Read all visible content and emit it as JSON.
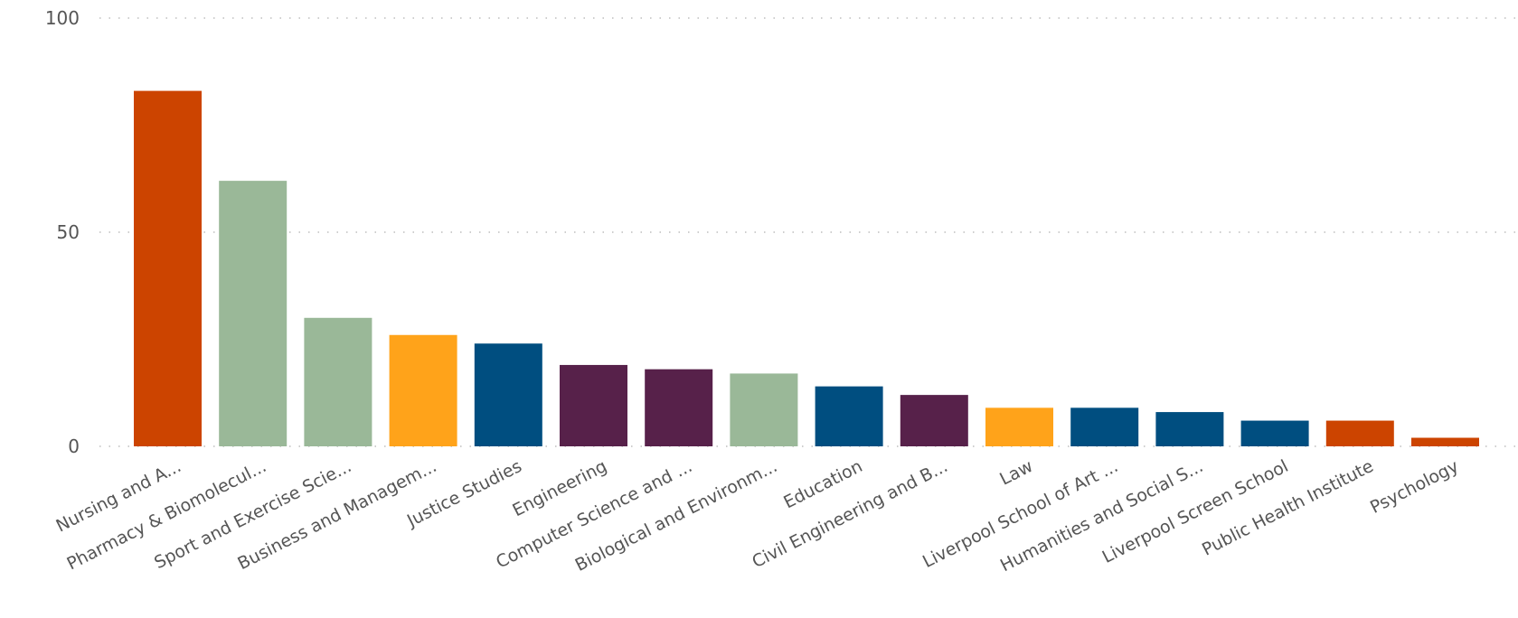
{
  "chart_data": {
    "type": "bar",
    "categories": [
      "Nursing and A...",
      "Pharmacy & Biomolecul...",
      "Sport and Exercise Scie...",
      "Business and Managem...",
      "Justice Studies",
      "Engineering",
      "Computer Science and ...",
      "Biological and Environm...",
      "Education",
      "Civil Engineering and B...",
      "Law",
      "Liverpool School of Art ...",
      "Humanities and Social S...",
      "Liverpool Screen School",
      "Public Health Institute",
      "Psychology"
    ],
    "values": [
      83,
      62,
      30,
      26,
      24,
      19,
      18,
      17,
      14,
      12,
      9,
      9,
      8,
      6,
      6,
      2
    ],
    "colors": [
      "#CC4400",
      "#9AB898",
      "#9AB898",
      "#FFA31A",
      "#004E80",
      "#57214A",
      "#57214A",
      "#9AB898",
      "#004E80",
      "#57214A",
      "#FFA31A",
      "#004E80",
      "#004E80",
      "#004E80",
      "#CC4400",
      "#CC4400"
    ],
    "y_ticks": [
      "0",
      "50",
      "100"
    ],
    "ylim": [
      0,
      100
    ],
    "grid": true,
    "title": "",
    "xlabel": "",
    "ylabel": ""
  }
}
